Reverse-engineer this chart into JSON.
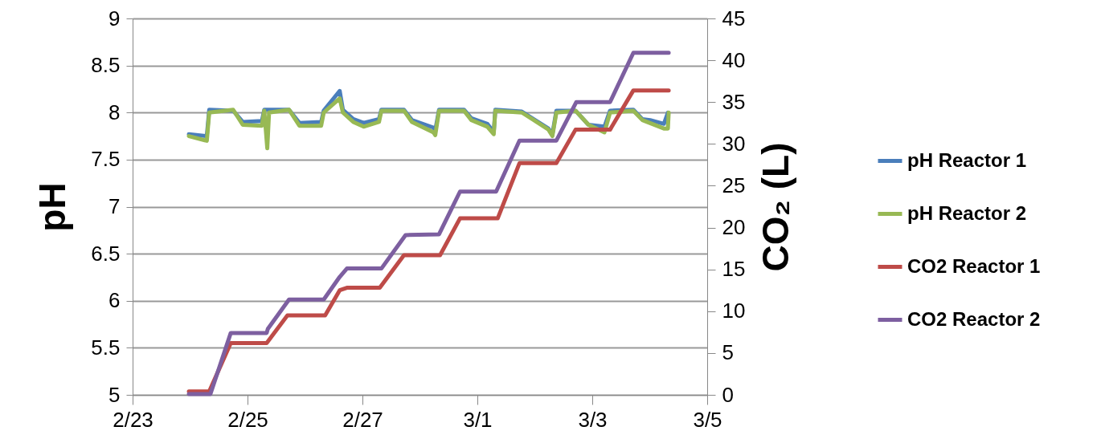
{
  "chart_data": {
    "type": "line",
    "ylabel": "pH",
    "y2label": "CO₂ (L)",
    "xlim": [
      "--02-23",
      "--03-05"
    ],
    "xticks": [
      {
        "value": "--02-23",
        "label": "2/23"
      },
      {
        "value": "--02-25",
        "label": "2/25"
      },
      {
        "value": "--02-27",
        "label": "2/27"
      },
      {
        "value": "--03-01",
        "label": "3/1"
      },
      {
        "value": "--03-03",
        "label": "3/3"
      },
      {
        "value": "--03-05",
        "label": "3/5"
      }
    ],
    "ylim": [
      5,
      9
    ],
    "yticks": [
      5,
      5.5,
      6,
      6.5,
      7,
      7.5,
      8,
      8.5,
      9
    ],
    "y2lim": [
      0,
      45
    ],
    "y2ticks": [
      0,
      5,
      10,
      15,
      20,
      25,
      30,
      35,
      40,
      45
    ],
    "grid": "y",
    "legend": "right",
    "series": [
      {
        "name": "pH Reactor 1",
        "color": "#4a7ebb",
        "x": [
          "--02-23T23:30",
          "--02-24T07:00",
          "--02-24T08:00",
          "--02-24T18:00",
          "--02-24T22:00",
          "--02-25T06:00",
          "--02-25T07:00",
          "--02-25T17:20",
          "--02-25T21:40",
          "--02-26T06:45",
          "--02-26T07:50",
          "--02-26T14:30",
          "--02-26T15:50",
          "--02-26T20:10",
          "--02-27T00:30",
          "--02-27T06:55",
          "--02-27T07:55",
          "--02-27T17:20",
          "--02-27T20:40",
          "--02-28T05:40",
          "--02-28T06:25",
          "--02-28T08:00",
          "--02-28T18:25",
          "--02-28T21:30",
          "--03-01T04:10",
          "--03-01T06:50",
          "--03-01T07:30",
          "--03-01T18:35",
          "--03-01T22:55",
          "--03-02T05:40",
          "--03-02T07:20",
          "--03-02T09:00",
          "--03-02T17:00",
          "--03-02T22:25",
          "--03-03T05:05",
          "--03-03T07:25",
          "--03-03T17:10",
          "--03-03T20:55",
          "--03-04T00:10",
          "--03-04T05:55",
          "--03-04T07:35"
        ],
        "values": [
          7.77,
          7.75,
          8.03,
          8.02,
          7.9,
          7.91,
          8.03,
          8.03,
          7.89,
          7.9,
          8.02,
          8.23,
          8.03,
          7.93,
          7.89,
          7.93,
          8.03,
          8.03,
          7.92,
          7.84,
          7.81,
          8.03,
          8.03,
          7.94,
          7.88,
          7.79,
          8.03,
          8.01,
          7.94,
          7.83,
          7.77,
          8.02,
          8.02,
          7.87,
          7.85,
          8.02,
          8.03,
          7.93,
          7.92,
          7.88,
          8.0
        ]
      },
      {
        "name": "pH Reactor 2",
        "color": "#98b954",
        "x": [
          "--02-23T23:30",
          "--02-24T07:00",
          "--02-24T08:00",
          "--02-24T18:00",
          "--02-24T22:00",
          "--02-25T06:00",
          "--02-25T07:00",
          "--02-25T08:15",
          "--02-25T09:00",
          "--02-25T17:20",
          "--02-25T21:40",
          "--02-26T06:45",
          "--02-26T07:50",
          "--02-26T14:30",
          "--02-26T15:50",
          "--02-26T20:10",
          "--02-27T00:30",
          "--02-27T06:55",
          "--02-27T07:55",
          "--02-27T17:20",
          "--02-27T20:40",
          "--02-28T05:40",
          "--02-28T06:25",
          "--02-28T08:00",
          "--02-28T18:25",
          "--02-28T21:30",
          "--03-01T04:10",
          "--03-01T06:50",
          "--03-01T07:30",
          "--03-01T18:35",
          "--03-01T22:55",
          "--03-02T05:40",
          "--03-02T07:20",
          "--03-02T09:00",
          "--03-02T17:00",
          "--03-02T22:25",
          "--03-03T05:05",
          "--03-03T07:25",
          "--03-03T17:10",
          "--03-03T20:55",
          "--03-04T05:55",
          "--03-04T07:35",
          "--03-04T07:55"
        ],
        "values": [
          7.75,
          7.7,
          8.0,
          8.03,
          7.87,
          7.86,
          8.02,
          7.62,
          8.0,
          8.03,
          7.86,
          7.86,
          8.0,
          8.15,
          8.0,
          7.9,
          7.85,
          7.9,
          8.02,
          8.02,
          7.9,
          7.79,
          7.76,
          8.02,
          8.02,
          7.92,
          7.85,
          7.77,
          8.02,
          8.0,
          7.93,
          7.82,
          7.75,
          8.0,
          8.02,
          7.87,
          7.79,
          8.0,
          8.02,
          7.92,
          7.83,
          7.83,
          8.0
        ]
      },
      {
        "name": "CO2 Reactor 1",
        "color": "#be4b48",
        "axis": "y2",
        "x": [
          "--02-23T23:30",
          "--02-24T08:00",
          "--02-24T17:00",
          "--02-25T08:00",
          "--02-25T16:40",
          "--02-26T08:25",
          "--02-26T14:30",
          "--02-26T17:30",
          "--02-27T07:15",
          "--02-27T17:20",
          "--02-28T08:25",
          "--02-28T16:45",
          "--03-01T08:30",
          "--03-01T17:35",
          "--03-02T09:00",
          "--03-02T17:00",
          "--03-03T07:25",
          "--03-03T17:10",
          "--03-04T07:55"
        ],
        "values": [
          0.4,
          0.4,
          6.2,
          6.2,
          9.5,
          9.5,
          12.5,
          12.8,
          12.8,
          16.7,
          16.7,
          21.1,
          21.1,
          27.7,
          27.7,
          31.7,
          31.7,
          36.4,
          36.4
        ]
      },
      {
        "name": "CO2 Reactor 2",
        "color": "#7d5fa0",
        "axis": "y2",
        "x": [
          "--02-23T23:30",
          "--02-24T08:30",
          "--02-24T17:00",
          "--02-25T08:00",
          "--02-25T08:30",
          "--02-25T17:20",
          "--02-26T07:50",
          "--02-26T14:30",
          "--02-26T17:30",
          "--02-27T07:55",
          "--02-27T18:00",
          "--02-28T08:00",
          "--02-28T16:45",
          "--03-01T07:50",
          "--03-01T17:35",
          "--03-02T09:00",
          "--03-02T17:20",
          "--03-03T07:25",
          "--03-03T17:10",
          "--03-04T07:55"
        ],
        "values": [
          0.1,
          0.1,
          7.4,
          7.4,
          7.9,
          11.4,
          11.4,
          14.1,
          15.1,
          15.1,
          19.1,
          19.2,
          24.3,
          24.3,
          30.4,
          30.4,
          35.0,
          35.0,
          40.9,
          40.9
        ]
      }
    ]
  }
}
